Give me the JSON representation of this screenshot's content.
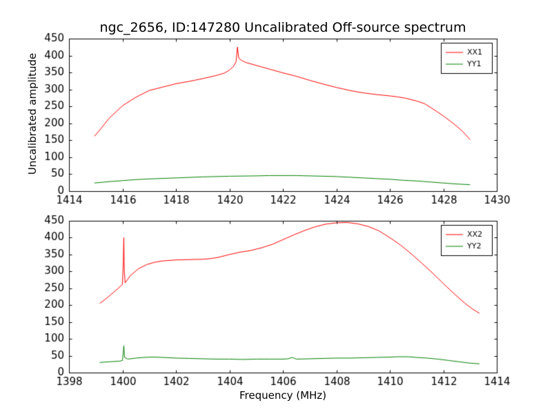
{
  "chart_data": [
    {
      "type": "line",
      "title": "ngc_2656, ID:147280 Uncalibrated Off-source spectrum",
      "xlabel": "",
      "ylabel": "Uncalibrated amplitude",
      "xlim": [
        1414,
        1430
      ],
      "ylim": [
        0,
        450
      ],
      "xticks": [
        1414,
        1416,
        1418,
        1420,
        1422,
        1424,
        1426,
        1428,
        1430
      ],
      "yticks": [
        0,
        50,
        100,
        150,
        200,
        250,
        300,
        350,
        400,
        450
      ],
      "grid": false,
      "legend_position": "upper right",
      "series": [
        {
          "name": "XX1",
          "color": "#ff0000",
          "points": [
            [
              1414.95,
              162
            ],
            [
              1415.2,
              185
            ],
            [
              1415.5,
              215
            ],
            [
              1416.0,
              252
            ],
            [
              1416.5,
              277
            ],
            [
              1417.0,
              297
            ],
            [
              1417.5,
              307
            ],
            [
              1418.0,
              317
            ],
            [
              1418.5,
              324
            ],
            [
              1419.0,
              332
            ],
            [
              1419.5,
              341
            ],
            [
              1419.8,
              348
            ],
            [
              1420.0,
              357
            ],
            [
              1420.15,
              368
            ],
            [
              1420.25,
              382
            ],
            [
              1420.3,
              425
            ],
            [
              1420.35,
              392
            ],
            [
              1420.45,
              386
            ],
            [
              1420.6,
              380
            ],
            [
              1421.0,
              371
            ],
            [
              1421.5,
              360
            ],
            [
              1422.0,
              349
            ],
            [
              1422.5,
              339
            ],
            [
              1423.0,
              327
            ],
            [
              1423.5,
              316
            ],
            [
              1424.0,
              306
            ],
            [
              1424.5,
              297
            ],
            [
              1425.0,
              290
            ],
            [
              1425.5,
              285
            ],
            [
              1426.0,
              281
            ],
            [
              1426.3,
              278
            ],
            [
              1426.6,
              274
            ],
            [
              1427.0,
              266
            ],
            [
              1427.3,
              258
            ],
            [
              1427.6,
              243
            ],
            [
              1428.0,
              222
            ],
            [
              1428.4,
              198
            ],
            [
              1428.7,
              178
            ],
            [
              1429.0,
              152
            ]
          ]
        },
        {
          "name": "YY1",
          "color": "#008000",
          "points": [
            [
              1414.95,
              24
            ],
            [
              1415.5,
              28
            ],
            [
              1416.0,
              31
            ],
            [
              1416.5,
              34
            ],
            [
              1417.0,
              36
            ],
            [
              1418.0,
              39
            ],
            [
              1419.0,
              42
            ],
            [
              1420.0,
              44
            ],
            [
              1421.0,
              45
            ],
            [
              1421.5,
              46
            ],
            [
              1422.0,
              46
            ],
            [
              1422.5,
              46
            ],
            [
              1423.0,
              45
            ],
            [
              1423.5,
              44
            ],
            [
              1424.0,
              43
            ],
            [
              1424.5,
              41
            ],
            [
              1425.0,
              39
            ],
            [
              1425.5,
              37
            ],
            [
              1426.0,
              35
            ],
            [
              1426.5,
              32
            ],
            [
              1427.0,
              30
            ],
            [
              1427.5,
              27
            ],
            [
              1428.0,
              24
            ],
            [
              1428.5,
              21
            ],
            [
              1429.0,
              19
            ]
          ]
        }
      ]
    },
    {
      "type": "line",
      "title": "",
      "xlabel": "Frequency (MHz)",
      "ylabel": "",
      "xlim": [
        1398,
        1414
      ],
      "ylim": [
        0,
        450
      ],
      "xticks": [
        1398,
        1400,
        1402,
        1404,
        1406,
        1408,
        1410,
        1412,
        1414
      ],
      "yticks": [
        0,
        50,
        100,
        150,
        200,
        250,
        300,
        350,
        400,
        450
      ],
      "grid": false,
      "legend_position": "upper right",
      "series": [
        {
          "name": "XX2",
          "color": "#ff0000",
          "points": [
            [
              1399.15,
              205
            ],
            [
              1399.4,
              220
            ],
            [
              1399.7,
              240
            ],
            [
              1399.95,
              258
            ],
            [
              1400.0,
              262
            ],
            [
              1400.03,
              330
            ],
            [
              1400.05,
              400
            ],
            [
              1400.07,
              300
            ],
            [
              1400.1,
              266
            ],
            [
              1400.3,
              288
            ],
            [
              1400.6,
              308
            ],
            [
              1400.9,
              320
            ],
            [
              1401.2,
              327
            ],
            [
              1401.5,
              331
            ],
            [
              1402.0,
              334
            ],
            [
              1402.5,
              335
            ],
            [
              1403.0,
              336
            ],
            [
              1403.3,
              338
            ],
            [
              1403.6,
              342
            ],
            [
              1404.0,
              350
            ],
            [
              1404.4,
              357
            ],
            [
              1404.8,
              362
            ],
            [
              1405.2,
              370
            ],
            [
              1405.6,
              380
            ],
            [
              1406.0,
              394
            ],
            [
              1406.4,
              408
            ],
            [
              1406.8,
              421
            ],
            [
              1407.2,
              432
            ],
            [
              1407.6,
              440
            ],
            [
              1408.0,
              444
            ],
            [
              1408.4,
              445
            ],
            [
              1408.8,
              441
            ],
            [
              1409.2,
              433
            ],
            [
              1409.6,
              420
            ],
            [
              1410.0,
              400
            ],
            [
              1410.4,
              378
            ],
            [
              1410.8,
              352
            ],
            [
              1411.2,
              324
            ],
            [
              1411.6,
              295
            ],
            [
              1412.0,
              264
            ],
            [
              1412.4,
              234
            ],
            [
              1412.8,
              206
            ],
            [
              1413.1,
              188
            ],
            [
              1413.35,
              176
            ]
          ]
        },
        {
          "name": "YY2",
          "color": "#008000",
          "points": [
            [
              1399.15,
              30
            ],
            [
              1399.5,
              32
            ],
            [
              1399.9,
              34
            ],
            [
              1400.0,
              36
            ],
            [
              1400.03,
              60
            ],
            [
              1400.05,
              80
            ],
            [
              1400.08,
              45
            ],
            [
              1400.2,
              40
            ],
            [
              1400.5,
              43
            ],
            [
              1400.8,
              45
            ],
            [
              1401.1,
              46
            ],
            [
              1401.5,
              45
            ],
            [
              1402.0,
              43
            ],
            [
              1402.5,
              42
            ],
            [
              1403.0,
              41
            ],
            [
              1403.5,
              40
            ],
            [
              1404.0,
              40
            ],
            [
              1404.5,
              39
            ],
            [
              1405.0,
              40
            ],
            [
              1405.5,
              40
            ],
            [
              1406.0,
              40
            ],
            [
              1406.2,
              41
            ],
            [
              1406.35,
              45
            ],
            [
              1406.5,
              40
            ],
            [
              1407.0,
              41
            ],
            [
              1407.5,
              42
            ],
            [
              1408.0,
              43
            ],
            [
              1408.5,
              43
            ],
            [
              1409.0,
              44
            ],
            [
              1409.5,
              45
            ],
            [
              1410.0,
              46
            ],
            [
              1410.3,
              47
            ],
            [
              1410.7,
              47
            ],
            [
              1411.0,
              45
            ],
            [
              1411.4,
              43
            ],
            [
              1411.8,
              40
            ],
            [
              1412.2,
              36
            ],
            [
              1412.6,
              32
            ],
            [
              1413.0,
              28
            ],
            [
              1413.35,
              26
            ]
          ]
        }
      ]
    }
  ],
  "style": {
    "frame_color": "#000000",
    "background": "#ffffff"
  }
}
